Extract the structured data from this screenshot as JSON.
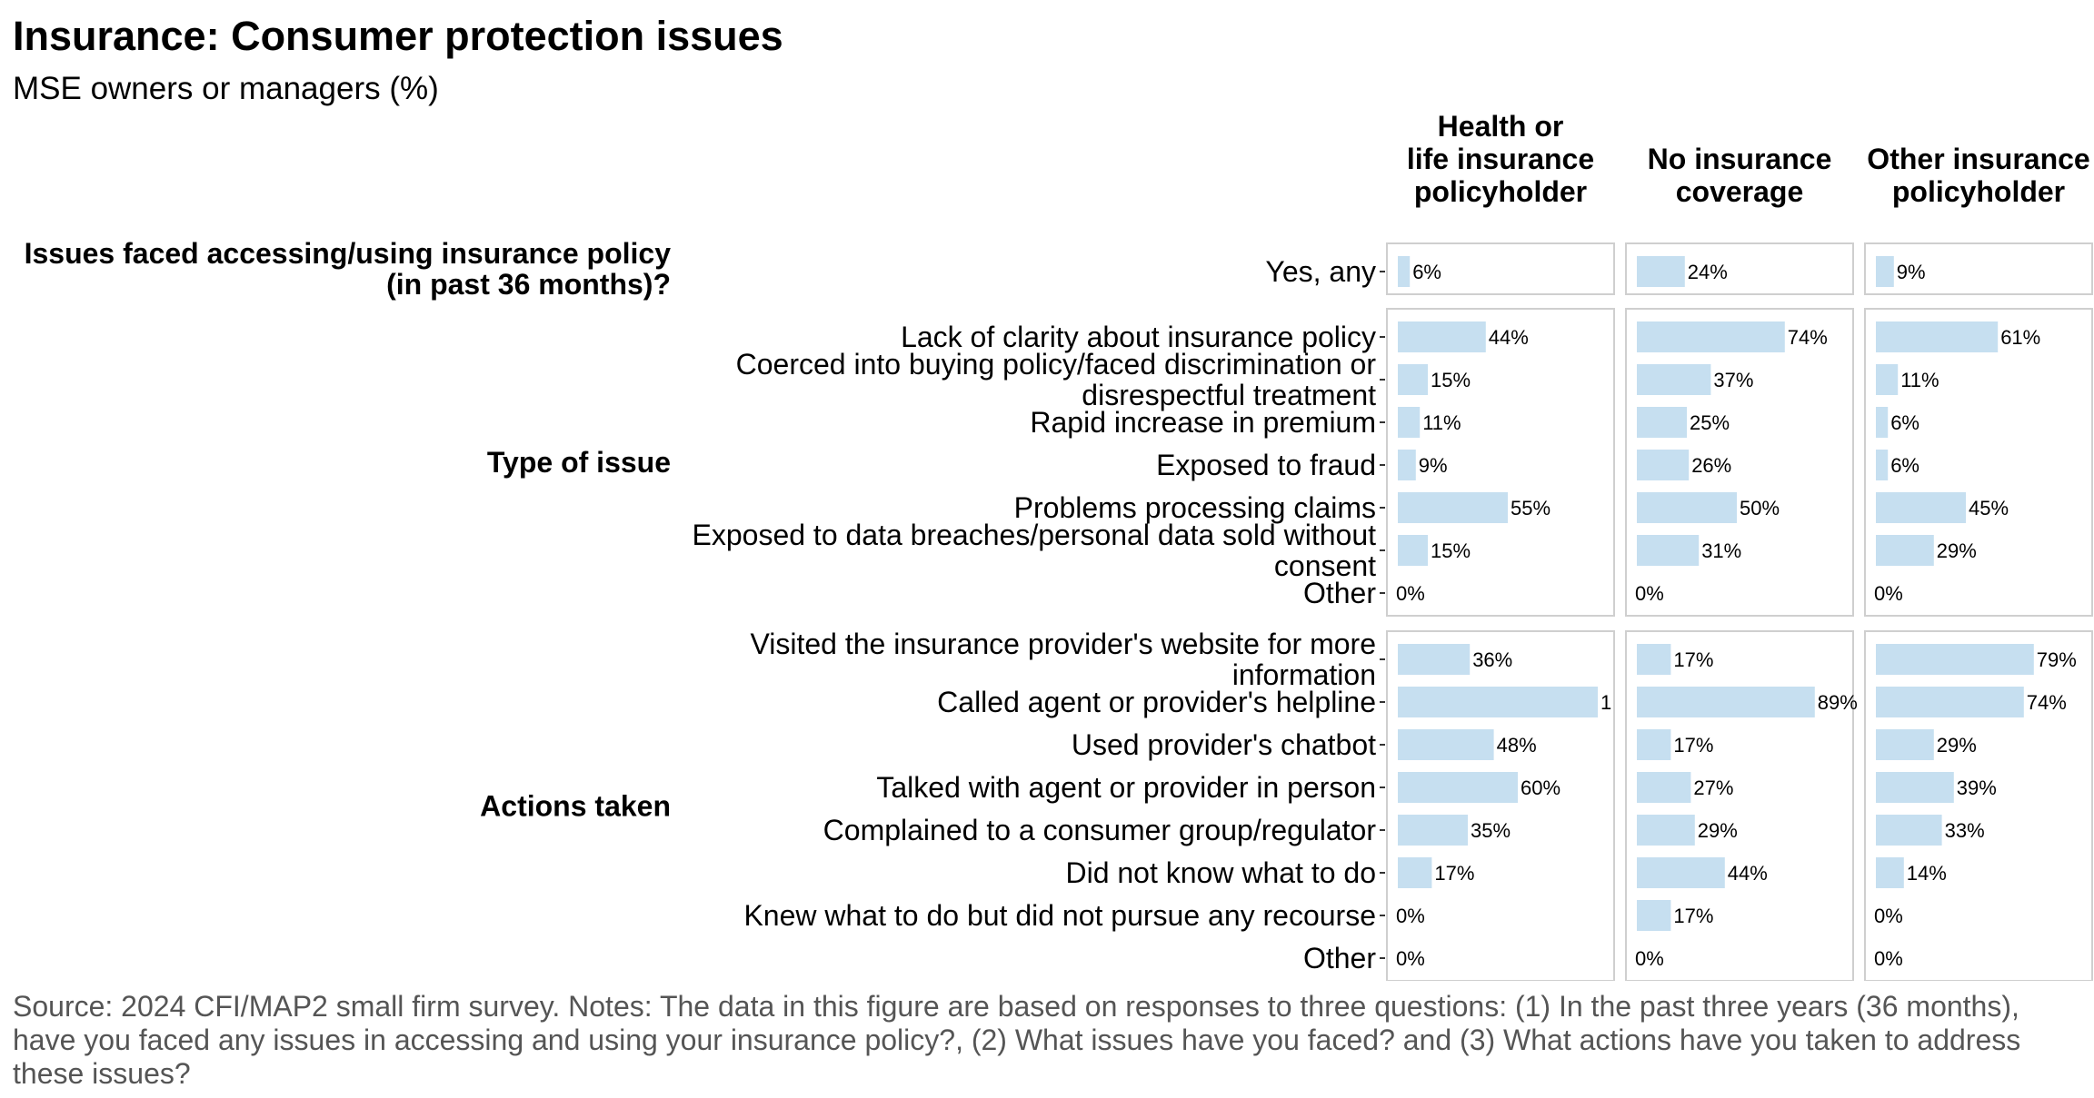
{
  "title": "Insurance: Consumer protection issues",
  "subtitle": "MSE owners or managers (%)",
  "source": "Source: 2024 CFI/MAP2 small firm survey. Notes: The data in this figure are based on responses to three questions: (1) In the past three years (36 months), have you faced any issues in accessing and using your insurance policy?, (2) What issues have you faced? and (3) What actions have you taken to address these issues?",
  "colors": {
    "bar": "#c6dff0",
    "panel_border": "#cfcfcf",
    "text": "#000000",
    "source": "#555555"
  },
  "chart_data": {
    "type": "bar",
    "orientation": "horizontal",
    "grid": false,
    "facets": [
      {
        "label": [
          "Health or",
          "life insurance",
          "policyholder"
        ]
      },
      {
        "label": [
          "No insurance",
          "coverage"
        ]
      },
      {
        "label": [
          "Other insurance",
          "policyholder"
        ]
      }
    ],
    "groups": [
      {
        "label": [
          "Issues faced accessing/using insurance policy",
          "(in past 36 months)?"
        ],
        "rows": [
          {
            "label": [
              "Yes, any"
            ],
            "values": [
              6,
              24,
              9
            ],
            "labels": [
              "6%",
              "24%",
              "9%"
            ]
          }
        ]
      },
      {
        "label": [
          "Type of issue"
        ],
        "rows": [
          {
            "label": [
              "Lack of clarity about insurance policy"
            ],
            "values": [
              44,
              74,
              61
            ],
            "labels": [
              "44%",
              "74%",
              "61%"
            ]
          },
          {
            "label": [
              "Coerced into buying policy/faced discrimination or",
              "disrespectful treatment"
            ],
            "values": [
              15,
              37,
              11
            ],
            "labels": [
              "15%",
              "37%",
              "11%"
            ]
          },
          {
            "label": [
              "Rapid increase in premium"
            ],
            "values": [
              11,
              25,
              6
            ],
            "labels": [
              "11%",
              "25%",
              "6%"
            ]
          },
          {
            "label": [
              "Exposed to fraud"
            ],
            "values": [
              9,
              26,
              6
            ],
            "labels": [
              "9%",
              "26%",
              "6%"
            ]
          },
          {
            "label": [
              "Problems processing claims"
            ],
            "values": [
              55,
              50,
              45
            ],
            "labels": [
              "55%",
              "50%",
              "45%"
            ]
          },
          {
            "label": [
              "Exposed to data breaches/personal data sold without",
              "consent"
            ],
            "values": [
              15,
              31,
              29
            ],
            "labels": [
              "15%",
              "31%",
              "29%"
            ]
          },
          {
            "label": [
              "Other"
            ],
            "values": [
              0,
              0,
              0
            ],
            "labels": [
              "0%",
              "0%",
              "0%"
            ]
          }
        ]
      },
      {
        "label": [
          "Actions taken"
        ],
        "rows": [
          {
            "label": [
              "Visited the insurance provider's website for more",
              "information"
            ],
            "values": [
              36,
              17,
              79
            ],
            "labels": [
              "36%",
              "17%",
              "79%"
            ]
          },
          {
            "label": [
              "Called agent or provider's helpline"
            ],
            "values": [
              100,
              89,
              74
            ],
            "labels": [
              "1",
              "89%",
              "74%"
            ]
          },
          {
            "label": [
              "Used provider's chatbot"
            ],
            "values": [
              48,
              17,
              29
            ],
            "labels": [
              "48%",
              "17%",
              "29%"
            ]
          },
          {
            "label": [
              "Talked with agent or provider in person"
            ],
            "values": [
              60,
              27,
              39
            ],
            "labels": [
              "60%",
              "27%",
              "39%"
            ]
          },
          {
            "label": [
              "Complained to a consumer group/regulator"
            ],
            "values": [
              35,
              29,
              33
            ],
            "labels": [
              "35%",
              "29%",
              "33%"
            ]
          },
          {
            "label": [
              "Did not know what to do"
            ],
            "values": [
              17,
              44,
              14
            ],
            "labels": [
              "17%",
              "44%",
              "14%"
            ]
          },
          {
            "label": [
              "Knew what to do but did not pursue any recourse"
            ],
            "values": [
              0,
              17,
              0
            ],
            "labels": [
              "0%",
              "17%",
              "0%"
            ]
          },
          {
            "label": [
              "Other"
            ],
            "values": [
              0,
              0,
              0
            ],
            "labels": [
              "0%",
              "0%",
              "0%"
            ]
          }
        ]
      }
    ]
  }
}
